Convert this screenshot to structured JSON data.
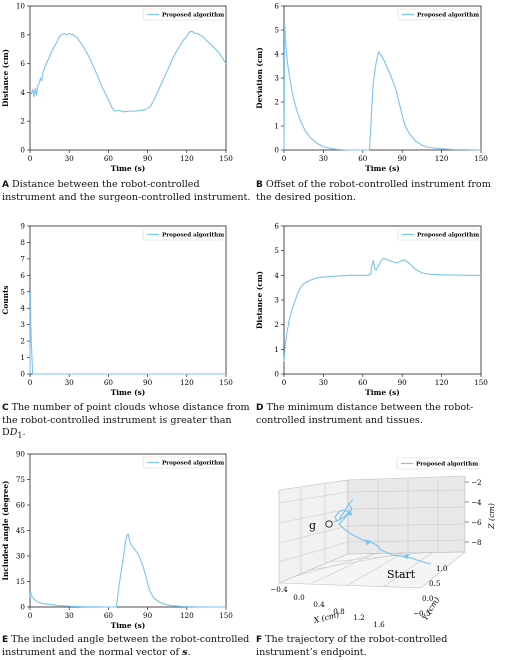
{
  "chart_data": [
    {
      "id": "A",
      "type": "line",
      "caption_letter": "A",
      "caption": "Distance between the robot-controlled instrument and the surgeon-controlled instrument.",
      "xlabel": "Time (s)",
      "ylabel": "Distance (cm)",
      "xlim": [
        0,
        150
      ],
      "ylim": [
        0,
        10
      ],
      "xticks": [
        0,
        30,
        60,
        90,
        120,
        150
      ],
      "yticks": [
        0,
        2,
        4,
        6,
        8,
        10
      ],
      "grid": false,
      "legend": "top-right",
      "color": "#7cc3ee",
      "series": [
        {
          "name": "Proposed algorithm",
          "x": [
            0,
            1,
            2,
            3,
            4,
            5,
            6,
            7,
            8,
            9,
            10,
            12,
            14,
            16,
            18,
            20,
            22,
            24,
            26,
            28,
            30,
            33,
            36,
            40,
            45,
            50,
            55,
            60,
            63,
            65,
            68,
            72,
            76,
            80,
            84,
            88,
            92,
            95,
            100,
            105,
            110,
            115,
            118,
            120,
            122,
            124,
            126,
            128,
            130,
            132,
            135,
            140,
            145,
            150
          ],
          "y": [
            4.1,
            3.9,
            4.2,
            3.7,
            4.3,
            3.8,
            4.5,
            4.6,
            5.0,
            4.8,
            5.4,
            5.9,
            6.3,
            6.7,
            7.1,
            7.4,
            7.8,
            8.0,
            8.1,
            8.0,
            8.1,
            8.0,
            7.8,
            7.3,
            6.5,
            5.5,
            4.4,
            3.5,
            2.9,
            2.7,
            2.75,
            2.65,
            2.7,
            2.7,
            2.75,
            2.8,
            3.0,
            3.5,
            4.5,
            5.5,
            6.5,
            7.3,
            7.7,
            7.9,
            8.2,
            8.25,
            8.1,
            8.1,
            8.0,
            7.9,
            7.6,
            7.2,
            6.7,
            6.0
          ]
        }
      ]
    },
    {
      "id": "B",
      "type": "line",
      "caption_letter": "B",
      "caption": "Offset of the robot-controlled instrument from the desired position.",
      "xlabel": "Time (s)",
      "ylabel": "Deviation (cm)",
      "xlim": [
        0,
        150
      ],
      "ylim": [
        0,
        6
      ],
      "xticks": [
        0,
        30,
        60,
        90,
        120,
        150
      ],
      "yticks": [
        0,
        1,
        2,
        3,
        4,
        5,
        6
      ],
      "grid": false,
      "legend": "top-right",
      "color": "#7cc3ee",
      "series": [
        {
          "name": "Proposed algorithm",
          "x": [
            0,
            0.5,
            1,
            2,
            3,
            5,
            7,
            10,
            13,
            16,
            20,
            25,
            30,
            35,
            40,
            45,
            50,
            55,
            60,
            63,
            65,
            66,
            67,
            68,
            70,
            72,
            74,
            76,
            78,
            80,
            82,
            85,
            88,
            90,
            92,
            95,
            100,
            105,
            110,
            120,
            130,
            140,
            150
          ],
          "y": [
            0,
            5.2,
            4.6,
            4.0,
            3.5,
            2.8,
            2.2,
            1.6,
            1.15,
            0.82,
            0.52,
            0.28,
            0.14,
            0.07,
            0.03,
            0.01,
            0.0,
            0.0,
            0.0,
            0.0,
            0.0,
            0.8,
            1.9,
            2.8,
            3.6,
            4.1,
            3.95,
            3.75,
            3.5,
            3.25,
            3.0,
            2.55,
            1.9,
            1.45,
            1.05,
            0.72,
            0.38,
            0.2,
            0.11,
            0.05,
            0.02,
            0.01,
            0.0
          ]
        }
      ]
    },
    {
      "id": "C",
      "type": "line",
      "caption_letter": "C",
      "caption": "The number of point clouds whose distance from the robot-controlled instrument is greater than D",
      "caption_sub": "1",
      "caption_end": ".",
      "xlabel": "Time (s)",
      "ylabel": "Counts",
      "xlim": [
        0,
        150
      ],
      "ylim": [
        0,
        9
      ],
      "xticks": [
        0,
        30,
        60,
        90,
        120,
        150
      ],
      "yticks": [
        0,
        1,
        2,
        3,
        4,
        5,
        6,
        7,
        8,
        9
      ],
      "grid": false,
      "legend": "top-right",
      "color": "#7cc3ee",
      "series": [
        {
          "name": "Proposed algorithm",
          "x": [
            0,
            0.3,
            0.6,
            1,
            1.5,
            2,
            3,
            150
          ],
          "y": [
            0,
            5,
            3,
            2,
            1,
            0,
            0,
            0
          ]
        }
      ]
    },
    {
      "id": "D",
      "type": "line",
      "caption_letter": "D",
      "caption": "The minimum distance between the robot-controlled instrument and tissues.",
      "xlabel": "Time (s)",
      "ylabel": "Distance (cm)",
      "xlim": [
        0,
        150
      ],
      "ylim": [
        0,
        6
      ],
      "xticks": [
        0,
        30,
        60,
        90,
        120,
        150
      ],
      "yticks": [
        0,
        1,
        2,
        3,
        4,
        5,
        6
      ],
      "grid": false,
      "legend": "top-right",
      "color": "#7cc3ee",
      "series": [
        {
          "name": "Proposed algorithm",
          "x": [
            0,
            1,
            2,
            4,
            6,
            8,
            10,
            12,
            14,
            16,
            20,
            25,
            30,
            40,
            50,
            60,
            64,
            66,
            67,
            68,
            69,
            70,
            72,
            74,
            76,
            78,
            80,
            83,
            86,
            88,
            90,
            92,
            95,
            100,
            105,
            110,
            120,
            130,
            140,
            150
          ],
          "y": [
            0.5,
            1.2,
            1.6,
            2.2,
            2.6,
            2.9,
            3.2,
            3.45,
            3.6,
            3.7,
            3.8,
            3.9,
            3.93,
            3.97,
            4.0,
            4.0,
            4.0,
            4.05,
            4.4,
            4.6,
            4.3,
            4.2,
            4.4,
            4.6,
            4.7,
            4.65,
            4.6,
            4.55,
            4.5,
            4.55,
            4.6,
            4.62,
            4.5,
            4.25,
            4.1,
            4.05,
            4.02,
            4.01,
            4.0,
            4.0
          ]
        }
      ]
    },
    {
      "id": "E",
      "type": "line",
      "caption_letter": "E",
      "caption": "The included angle between the robot-controlled instrument and the normal vector of ",
      "caption_emph": "s",
      "caption_end": ".",
      "xlabel": "Time (s)",
      "ylabel": "Included angle (degree)",
      "xlim": [
        0,
        150
      ],
      "ylim": [
        0,
        90
      ],
      "xticks": [
        0,
        30,
        60,
        90,
        120,
        150
      ],
      "yticks": [
        0,
        15,
        30,
        45,
        60,
        75,
        90
      ],
      "grid": false,
      "legend": "top-right",
      "color": "#7cc3ee",
      "series": [
        {
          "name": "Proposed algorithm",
          "x": [
            0,
            0.5,
            1,
            2,
            4,
            6,
            8,
            10,
            15,
            20,
            30,
            40,
            50,
            60,
            64,
            66,
            67,
            68,
            70,
            72,
            73,
            74,
            75,
            76,
            77,
            78,
            80,
            82,
            84,
            86,
            88,
            90,
            92,
            95,
            100,
            105,
            110,
            120,
            130,
            140,
            150
          ],
          "y": [
            6,
            9,
            7,
            5.5,
            4,
            3,
            2.5,
            2,
            1.5,
            1,
            0.5,
            0.2,
            0.1,
            0,
            0,
            0,
            5,
            12,
            22,
            32,
            38,
            42,
            43,
            40,
            37,
            36,
            34,
            32,
            29,
            25,
            20,
            14,
            9,
            5,
            2.5,
            1.2,
            0.6,
            0.2,
            0.05,
            0,
            0
          ]
        }
      ]
    },
    {
      "id": "F",
      "type": "line3d",
      "caption_letter": "F",
      "caption": "The trajectory of the robot-controlled instrument’s endpoint.",
      "xlabel": "X (cm)",
      "ylabel": "Y (cm)",
      "zlabel": "Z (cm)",
      "xticks": [
        "−0.4",
        "0.0",
        "0.4",
        "0.8",
        "1.2",
        "1.6"
      ],
      "yticks": [
        "1.0",
        "0.5",
        "0.0",
        "−0.5"
      ],
      "zticks": [
        "−2",
        "−4",
        "−6",
        "−8"
      ],
      "grid": true,
      "legend": "top-right",
      "color": "#7cc3ee",
      "series": [
        {
          "name": "Proposed algorithm"
        }
      ],
      "annotations": [
        {
          "text": "g"
        },
        {
          "text": "Start"
        }
      ]
    }
  ]
}
